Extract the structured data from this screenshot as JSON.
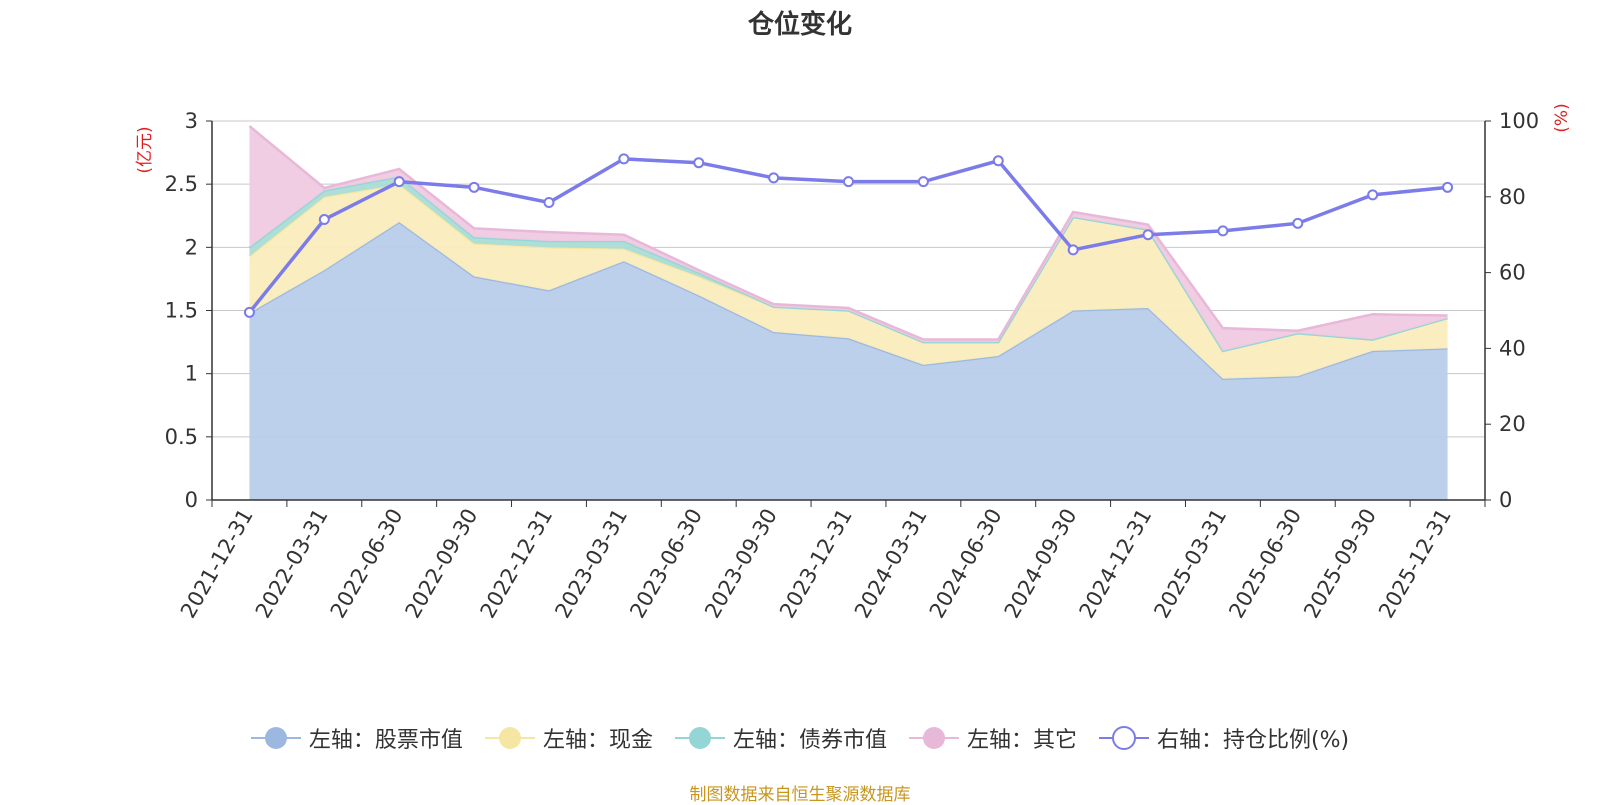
{
  "chart_data": {
    "type": "area",
    "title": "仓位变化",
    "categories": [
      "2021-12-31",
      "2022-03-31",
      "2022-06-30",
      "2022-09-30",
      "2022-12-31",
      "2023-03-31",
      "2023-06-30",
      "2023-09-30",
      "2023-12-31",
      "2024-03-31",
      "2024-06-30",
      "2024-09-30",
      "2024-12-31",
      "2025-03-31",
      "2025-06-30",
      "2025-09-30",
      "2025-12-31"
    ],
    "left_axis": {
      "label": "(亿元)",
      "ylim": [
        0,
        3
      ],
      "ticks": [
        "0",
        "0.5",
        "1",
        "1.5",
        "2",
        "2.5",
        "3"
      ]
    },
    "right_axis": {
      "label": "(%)",
      "ylim": [
        0,
        100
      ],
      "ticks": [
        "0",
        "20",
        "40",
        "60",
        "80",
        "100"
      ]
    },
    "series": [
      {
        "name": "左轴：股票市值",
        "axis": "left",
        "stack": true,
        "color": "#9db8e0",
        "fill": "#b8cdea",
        "values": [
          1.48,
          1.82,
          2.2,
          1.77,
          1.66,
          1.89,
          1.62,
          1.33,
          1.28,
          1.07,
          1.14,
          1.5,
          1.52,
          0.96,
          0.98,
          1.18,
          1.2
        ]
      },
      {
        "name": "左轴：现金",
        "axis": "left",
        "stack": true,
        "color": "#f5e6a3",
        "fill": "#faedbd",
        "values": [
          0.45,
          0.58,
          0.3,
          0.26,
          0.34,
          0.1,
          0.15,
          0.2,
          0.22,
          0.18,
          0.11,
          0.74,
          0.62,
          0.22,
          0.34,
          0.09,
          0.24
        ]
      },
      {
        "name": "左轴：债券市值",
        "axis": "left",
        "stack": true,
        "color": "#94d5d5",
        "fill": "#a9dcd6",
        "values": [
          0.07,
          0.05,
          0.06,
          0.05,
          0.05,
          0.06,
          0.03,
          0,
          0,
          0,
          0,
          0,
          0,
          0,
          0,
          0,
          0
        ]
      },
      {
        "name": "左轴：其它",
        "axis": "left",
        "stack": true,
        "color": "#e8b8d8",
        "fill": "#efcae2",
        "values": [
          0.96,
          0.02,
          0.06,
          0.07,
          0.07,
          0.05,
          0.02,
          0.02,
          0.02,
          0.02,
          0.02,
          0.04,
          0.04,
          0.18,
          0.02,
          0.2,
          0.02
        ]
      },
      {
        "name": "右轴：持仓比例(%)",
        "axis": "right",
        "type": "line",
        "color": "#7b7bea",
        "values": [
          49.5,
          74,
          84,
          82.5,
          78.5,
          90,
          89,
          85,
          84,
          84,
          89.5,
          66,
          70,
          71,
          73,
          80.5,
          82.5
        ]
      }
    ],
    "footer": "制图数据来自恒生聚源数据库"
  }
}
